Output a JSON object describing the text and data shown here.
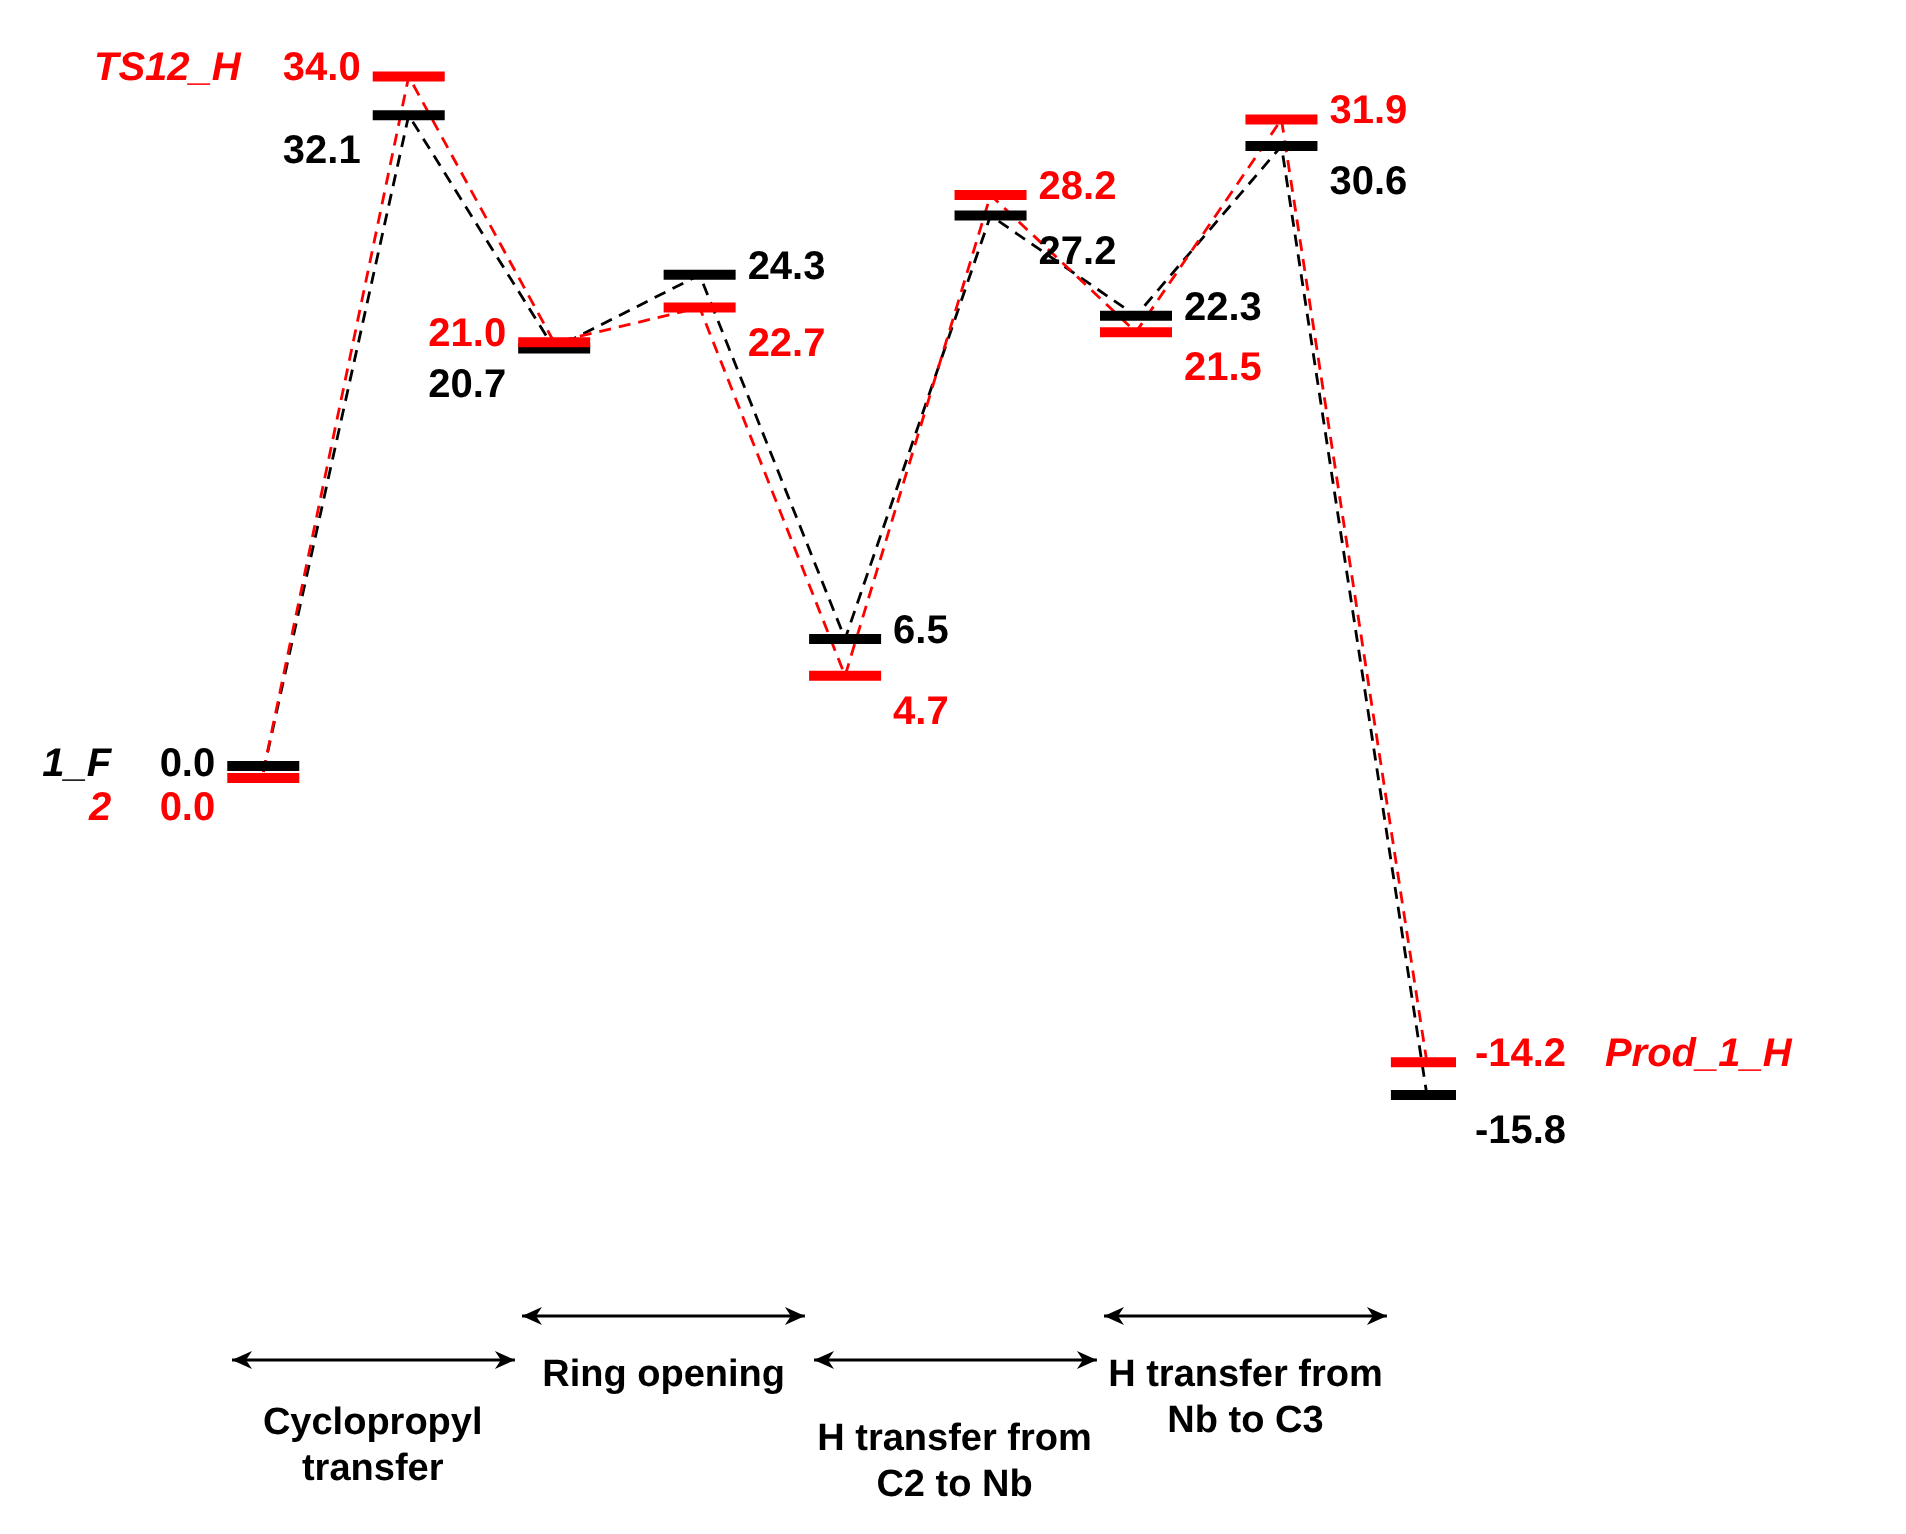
{
  "chart_data": {
    "type": "line",
    "categories": [
      null,
      null,
      null,
      null,
      null,
      null,
      null,
      null,
      null
    ],
    "series": [
      {
        "name": "1_F",
        "color": "#000000",
        "values": [
          0.0,
          32.1,
          20.7,
          24.3,
          6.5,
          27.2,
          22.3,
          30.6,
          -15.8
        ],
        "value_labels": [
          "0.0",
          "32.1",
          "20.7",
          "24.3",
          "6.5",
          "27.2",
          "22.3",
          "30.6",
          "-15.8"
        ]
      },
      {
        "name": "2",
        "color": "#ff0000",
        "values": [
          0.0,
          34.0,
          21.0,
          22.7,
          4.7,
          28.2,
          21.5,
          31.9,
          -14.2
        ],
        "value_labels": [
          "0.0",
          "34.0",
          "21.0",
          "22.7",
          "4.7",
          "28.2",
          "21.5",
          "31.9",
          "-14.2"
        ]
      }
    ],
    "line_style": "dashed",
    "annotations": [
      "TS12_H",
      "Prod_1_H",
      "Cyclopropyl transfer",
      "Ring opening",
      "H transfer from C2 to Nb",
      "H transfer from Nb to C3"
    ]
  }
}
